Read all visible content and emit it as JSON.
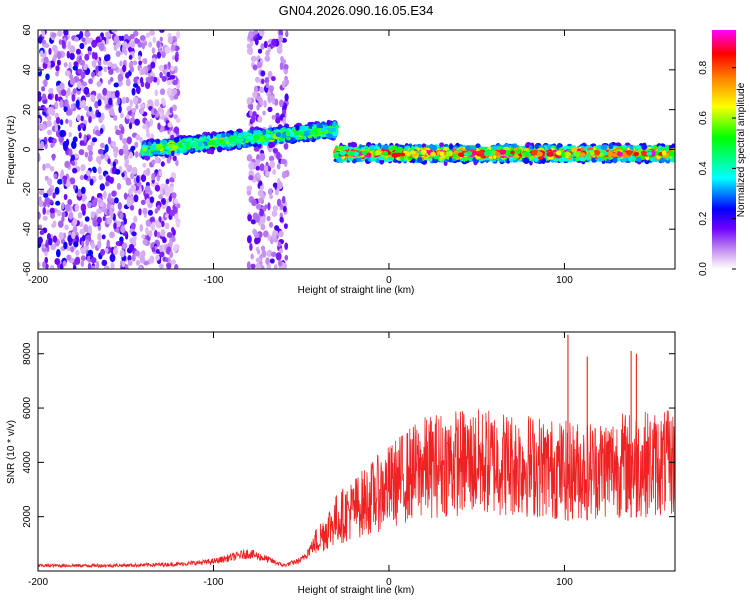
{
  "figure_title": "GN04.2026.090.16.05.E34",
  "chart_data": [
    {
      "type": "heatmap",
      "title": "GN04.2026.090.16.05.E34",
      "xlabel": "Height of straight line (km)",
      "ylabel": "Frequency (Hz)",
      "xlim": [
        -200,
        163
      ],
      "ylim": [
        -60,
        60
      ],
      "xticks": [
        -200,
        -100,
        0,
        100
      ],
      "yticks": [
        -60,
        -40,
        -20,
        0,
        20,
        40,
        60
      ],
      "colorbar": {
        "label": "Normalized spectral amplitude",
        "range": [
          0,
          0.95
        ],
        "ticks": [
          0.0,
          0.2,
          0.4,
          0.6,
          0.8
        ],
        "tick_labels": [
          "0.0",
          "0.2",
          "0.4",
          "0.6",
          "0.8"
        ],
        "colors": [
          "#ffffff",
          "#e6c8f5",
          "#b070f0",
          "#7000ff",
          "#0000ff",
          "#00ffff",
          "#00ff00",
          "#ffff00",
          "#ff8000",
          "#ff0000",
          "#ff00ff"
        ]
      },
      "features": [
        {
          "region": "noise",
          "x_range": [
            -200,
            -120
          ],
          "frequency_range": [
            -60,
            60
          ],
          "amplitude": [
            0.05,
            0.25
          ]
        },
        {
          "region": "noise",
          "x_range": [
            -80,
            -58
          ],
          "frequency_range": [
            -60,
            60
          ],
          "amplitude": [
            0.05,
            0.2
          ]
        },
        {
          "region": "signal band",
          "x_range": [
            -140,
            -30
          ],
          "center_frequency": [
            0,
            10
          ],
          "amplitude": [
            0.3,
            0.6
          ]
        },
        {
          "region": "signal band",
          "x_range": [
            -30,
            163
          ],
          "center_frequency": -2,
          "amplitude": [
            0.4,
            0.95
          ]
        }
      ]
    },
    {
      "type": "line",
      "xlabel": "Height of straight line (km)",
      "ylabel": "SNR (10 * v/v)",
      "xlim": [
        -200,
        163
      ],
      "ylim": [
        0,
        8800
      ],
      "xticks": [
        -200,
        -100,
        0,
        100
      ],
      "yticks": [
        2000,
        4000,
        6000,
        8000
      ],
      "color": "#ee2222",
      "series": [
        {
          "name": "SNR",
          "x": [
            -200,
            -180,
            -160,
            -140,
            -120,
            -100,
            -90,
            -80,
            -70,
            -60,
            -50,
            -40,
            -30,
            -20,
            -10,
            0,
            10,
            20,
            30,
            40,
            50,
            60,
            70,
            80,
            90,
            100,
            110,
            120,
            130,
            140,
            150,
            163
          ],
          "values": [
            200,
            200,
            200,
            220,
            250,
            350,
            500,
            650,
            450,
            200,
            400,
            1200,
            1900,
            2300,
            2700,
            3100,
            3500,
            3800,
            3950,
            4000,
            4000,
            4000,
            3950,
            3900,
            3800,
            3700,
            3700,
            3800,
            3900,
            3950,
            3950,
            3950
          ]
        }
      ],
      "peaks": [
        {
          "x": 102,
          "value": 8700
        },
        {
          "x": 138,
          "value": 8100
        },
        {
          "x": 113,
          "value": 7900
        },
        {
          "x": 141,
          "value": 8000
        }
      ]
    }
  ]
}
